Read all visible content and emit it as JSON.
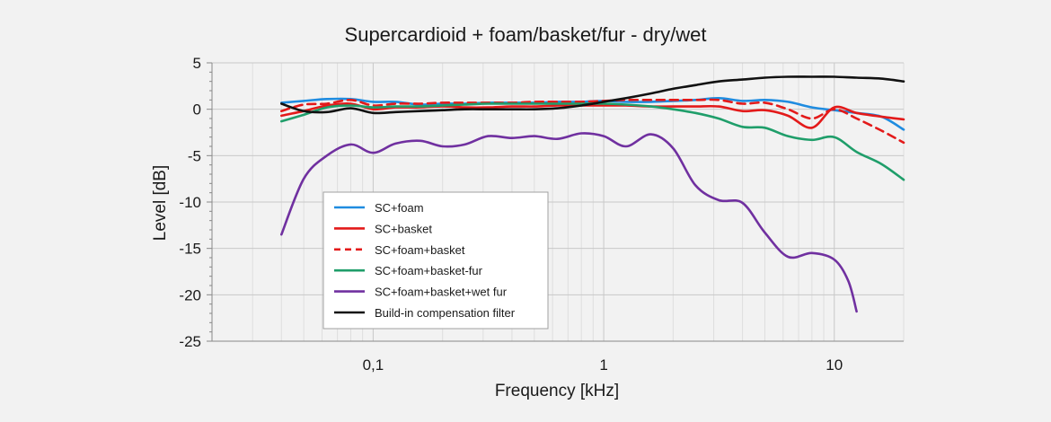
{
  "chart_data": {
    "type": "line",
    "title": "Supercardioid + foam/basket/fur - dry/wet",
    "xlabel": "Frequency [kHz]",
    "ylabel": "Level [dB]",
    "x_scale": "log",
    "xlim": [
      0.02,
      20
    ],
    "ylim": [
      -25,
      5
    ],
    "x_ticks": [
      {
        "value": 0.1,
        "label": "0,1"
      },
      {
        "value": 1,
        "label": "1"
      },
      {
        "value": 10,
        "label": "10"
      }
    ],
    "y_ticks": [
      {
        "value": 5,
        "label": "5"
      },
      {
        "value": 0,
        "label": "0"
      },
      {
        "value": -5,
        "label": "-5"
      },
      {
        "value": -10,
        "label": "-10"
      },
      {
        "value": -15,
        "label": "-15"
      },
      {
        "value": -20,
        "label": "-20"
      },
      {
        "value": -25,
        "label": "-25"
      }
    ],
    "grid": true,
    "legend_position": "lower-left inside plot",
    "series": [
      {
        "name": "SC+foam",
        "color": "#1f8ce0",
        "dash": "solid",
        "x": [
          0.04,
          0.05,
          0.063,
          0.08,
          0.1,
          0.125,
          0.16,
          0.2,
          0.25,
          0.315,
          0.4,
          0.5,
          0.63,
          0.8,
          1,
          1.25,
          1.6,
          2,
          2.5,
          3.15,
          4,
          5,
          6.3,
          8,
          10,
          12.5,
          16,
          20
        ],
        "values": [
          0.7,
          0.9,
          1.1,
          1.1,
          0.8,
          0.8,
          0.5,
          0.6,
          0.6,
          0.7,
          0.7,
          0.7,
          0.8,
          0.8,
          0.9,
          0.8,
          0.8,
          0.9,
          1.0,
          1.2,
          0.9,
          1.0,
          0.8,
          0.2,
          -0.1,
          -0.4,
          -0.8,
          -2.2
        ]
      },
      {
        "name": "SC+basket",
        "color": "#e31a1a",
        "dash": "solid",
        "x": [
          0.04,
          0.05,
          0.063,
          0.08,
          0.1,
          0.125,
          0.16,
          0.2,
          0.25,
          0.315,
          0.4,
          0.5,
          0.63,
          0.8,
          1,
          1.25,
          1.6,
          2,
          2.5,
          3.15,
          4,
          5,
          6.3,
          8,
          10,
          12.5,
          16,
          20
        ],
        "values": [
          -0.7,
          -0.2,
          0.4,
          0.6,
          0.0,
          0.2,
          0.2,
          0.3,
          0.2,
          0.2,
          0.3,
          0.3,
          0.4,
          0.4,
          0.4,
          0.4,
          0.3,
          0.3,
          0.3,
          0.3,
          -0.2,
          -0.1,
          -0.7,
          -2.0,
          0.2,
          -0.4,
          -0.8,
          -1.1
        ]
      },
      {
        "name": "SC+foam+basket",
        "color": "#e31a1a",
        "dash": "dashed",
        "x": [
          0.04,
          0.05,
          0.063,
          0.08,
          0.1,
          0.125,
          0.16,
          0.2,
          0.25,
          0.315,
          0.4,
          0.5,
          0.63,
          0.8,
          1,
          1.25,
          1.6,
          2,
          2.5,
          3.15,
          4,
          5,
          6.3,
          8,
          10,
          12.5,
          16,
          20
        ],
        "values": [
          -0.2,
          0.5,
          0.6,
          1.0,
          0.4,
          0.6,
          0.6,
          0.7,
          0.7,
          0.7,
          0.7,
          0.8,
          0.8,
          0.8,
          0.9,
          1.0,
          1.0,
          1.0,
          1.0,
          1.0,
          0.6,
          0.7,
          0.0,
          -1.0,
          0.0,
          -1.0,
          -2.3,
          -3.6
        ]
      },
      {
        "name": "SC+foam+basket-fur",
        "color": "#1f9e6a",
        "dash": "solid",
        "x": [
          0.04,
          0.05,
          0.063,
          0.08,
          0.1,
          0.125,
          0.16,
          0.2,
          0.25,
          0.315,
          0.4,
          0.5,
          0.63,
          0.8,
          1,
          1.25,
          1.6,
          2,
          2.5,
          3.15,
          4,
          5,
          6.3,
          8,
          10,
          12.5,
          16,
          20
        ],
        "values": [
          -1.3,
          -0.6,
          0.2,
          0.4,
          0.2,
          0.3,
          0.3,
          0.4,
          0.5,
          0.6,
          0.6,
          0.6,
          0.6,
          0.6,
          0.6,
          0.5,
          0.3,
          0.0,
          -0.4,
          -1.0,
          -1.9,
          -2.0,
          -2.9,
          -3.3,
          -3.0,
          -4.6,
          -5.9,
          -7.6
        ]
      },
      {
        "name": "SC+foam+basket+wet fur",
        "color": "#7030a0",
        "dash": "solid",
        "x": [
          0.04,
          0.05,
          0.063,
          0.08,
          0.1,
          0.125,
          0.16,
          0.2,
          0.25,
          0.315,
          0.4,
          0.5,
          0.63,
          0.8,
          1,
          1.25,
          1.6,
          2,
          2.5,
          3.15,
          4,
          5,
          6.3,
          8,
          10,
          11.5,
          12.5
        ],
        "values": [
          -13.5,
          -7.5,
          -5.0,
          -3.8,
          -4.7,
          -3.7,
          -3.4,
          -4.0,
          -3.8,
          -2.9,
          -3.1,
          -2.9,
          -3.2,
          -2.6,
          -2.9,
          -4.0,
          -2.7,
          -4.2,
          -8.2,
          -9.8,
          -10.1,
          -13.3,
          -15.9,
          -15.5,
          -16.2,
          -18.5,
          -21.8
        ]
      },
      {
        "name": "Build-in compensation filter",
        "color": "#111111",
        "dash": "solid",
        "x": [
          0.04,
          0.05,
          0.063,
          0.08,
          0.1,
          0.125,
          0.16,
          0.2,
          0.25,
          0.315,
          0.4,
          0.5,
          0.63,
          0.8,
          1,
          1.25,
          1.6,
          2,
          2.5,
          3.15,
          4,
          5,
          6.3,
          8,
          10,
          12.5,
          16,
          20
        ],
        "values": [
          0.6,
          -0.2,
          -0.3,
          0.1,
          -0.4,
          -0.3,
          -0.2,
          -0.1,
          0.0,
          0.0,
          0.0,
          0.0,
          0.1,
          0.4,
          0.8,
          1.2,
          1.7,
          2.2,
          2.6,
          3.0,
          3.2,
          3.4,
          3.5,
          3.5,
          3.5,
          3.4,
          3.3,
          3.0
        ]
      }
    ]
  }
}
